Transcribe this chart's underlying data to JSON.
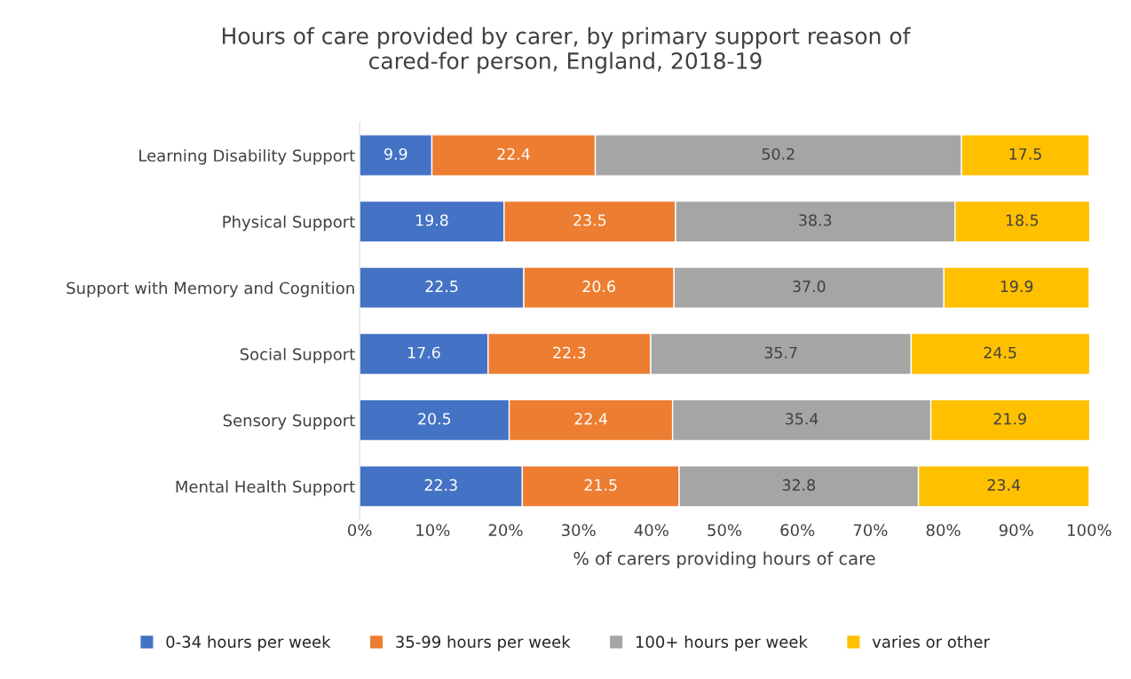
{
  "chart_data": {
    "type": "bar",
    "orientation": "horizontal",
    "stacked": true,
    "title": "Hours of care provided by carer, by primary support reason of\ncared-for person, England, 2018-19",
    "xlabel": "% of carers providing hours of care",
    "categories": [
      "Learning Disability Support",
      "Physical Support",
      "Support with Memory and Cognition",
      "Social Support",
      "Sensory Support",
      "Mental Health Support"
    ],
    "series": [
      {
        "name": "0-34 hours per week",
        "color": "#4472c4",
        "values": [
          9.9,
          19.8,
          22.5,
          17.6,
          20.5,
          22.3
        ],
        "value_labels": [
          "9.9",
          "19.8",
          "22.5",
          "17.6",
          "20.5",
          "22.3"
        ]
      },
      {
        "name": "35-99 hours per week",
        "color": "#ed7d31",
        "values": [
          22.4,
          23.5,
          20.6,
          22.3,
          22.4,
          21.5
        ],
        "value_labels": [
          "22.4",
          "23.5",
          "20.6",
          "22.3",
          "22.4",
          "21.5"
        ]
      },
      {
        "name": "100+ hours per week",
        "color": "#a5a5a5",
        "values": [
          50.2,
          38.3,
          37.0,
          35.7,
          35.4,
          32.8
        ],
        "value_labels": [
          "50.2",
          "38.3",
          "37.0",
          "35.7",
          "35.4",
          "32.8"
        ]
      },
      {
        "name": "varies or other",
        "color": "#ffc000",
        "values": [
          17.5,
          18.5,
          19.9,
          24.5,
          21.9,
          23.4
        ],
        "value_labels": [
          "17.5",
          "18.5",
          "19.9",
          "24.5",
          "21.9",
          "23.4"
        ]
      }
    ],
    "xlim": [
      0,
      100
    ],
    "xticks": [
      {
        "value": 0,
        "label": "0%"
      },
      {
        "value": 10,
        "label": "10%"
      },
      {
        "value": 20,
        "label": "20%"
      },
      {
        "value": 30,
        "label": "30%"
      },
      {
        "value": 40,
        "label": "40%"
      },
      {
        "value": 50,
        "label": "50%"
      },
      {
        "value": 60,
        "label": "60%"
      },
      {
        "value": 70,
        "label": "70%"
      },
      {
        "value": 80,
        "label": "80%"
      },
      {
        "value": 90,
        "label": "90%"
      },
      {
        "value": 100,
        "label": "100%"
      }
    ],
    "grid": false,
    "legend": "bottom"
  }
}
